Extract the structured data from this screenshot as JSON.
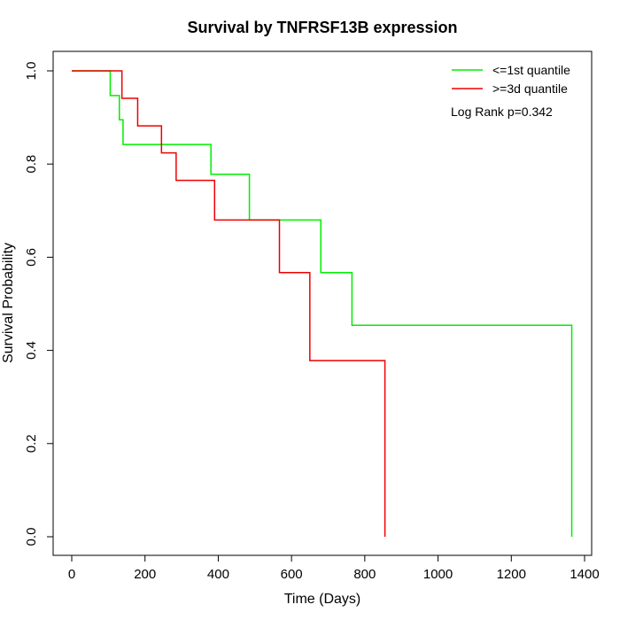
{
  "chart_data": {
    "type": "line",
    "title": "Survival by TNFRSF13B expression",
    "xlabel": "Time (Days)",
    "ylabel": "Survival Probability",
    "xlim": [
      0,
      1400
    ],
    "ylim": [
      0,
      1
    ],
    "x_ticks": [
      0,
      200,
      400,
      600,
      800,
      1000,
      1200,
      1400
    ],
    "y_ticks": [
      0.0,
      0.2,
      0.4,
      0.6,
      0.8,
      1.0
    ],
    "x_tick_labels": [
      "0",
      "200",
      "400",
      "600",
      "800",
      "1000",
      "1200",
      "1400"
    ],
    "y_tick_labels": [
      "0.0",
      "0.2",
      "0.4",
      "0.6",
      "0.8",
      "1.0"
    ],
    "grid": false,
    "legend_position": "top-right",
    "annotation": "Log Rank p=0.342",
    "series": [
      {
        "name": "<=1st quantile",
        "color": "#00ee00",
        "step": "post",
        "x": [
          0,
          105,
          130,
          140,
          380,
          485,
          680,
          765,
          1365,
          1365
        ],
        "y": [
          1.0,
          0.947,
          0.895,
          0.842,
          0.778,
          0.68,
          0.567,
          0.454,
          0.454,
          0.0
        ]
      },
      {
        "name": ">=3d quantile",
        "color": "#ee0000",
        "step": "post",
        "x": [
          0,
          137,
          180,
          245,
          285,
          390,
          567,
          650,
          855,
          855
        ],
        "y": [
          1.0,
          0.941,
          0.882,
          0.824,
          0.765,
          0.68,
          0.567,
          0.378,
          0.378,
          0.0
        ]
      }
    ]
  }
}
